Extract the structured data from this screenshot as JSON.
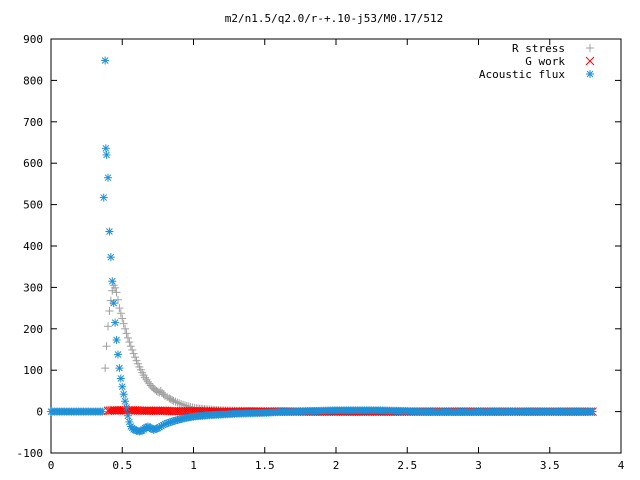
{
  "chart_data": {
    "type": "scatter",
    "title": "m2/n1.5/q2.0/r-+.10-j53/M0.17/512",
    "xlabel": "",
    "ylabel": "",
    "xlim": [
      0,
      4
    ],
    "ylim": [
      -100,
      900
    ],
    "x_ticks": [
      "0",
      "0.5",
      "1",
      "1.5",
      "2",
      "2.5",
      "3",
      "3.5",
      "4"
    ],
    "y_ticks": [
      "-100",
      "0",
      "100",
      "200",
      "300",
      "400",
      "500",
      "600",
      "700",
      "800",
      "900"
    ],
    "grid": false,
    "legend_position": "top-right",
    "series": [
      {
        "name": "R stress",
        "marker": "plus",
        "color": "#a0a0a0",
        "points": [
          [
            0.38,
            105
          ],
          [
            0.39,
            158
          ],
          [
            0.4,
            206
          ],
          [
            0.41,
            243
          ],
          [
            0.42,
            268
          ],
          [
            0.43,
            292
          ],
          [
            0.44,
            305
          ],
          [
            0.45,
            299
          ],
          [
            0.46,
            288
          ],
          [
            0.47,
            270
          ],
          [
            0.48,
            250
          ],
          [
            0.5,
            225
          ],
          [
            0.52,
            200
          ],
          [
            0.54,
            178
          ],
          [
            0.56,
            158
          ],
          [
            0.58,
            140
          ],
          [
            0.6,
            123
          ],
          [
            0.62,
            108
          ],
          [
            0.64,
            94
          ],
          [
            0.66,
            82
          ],
          [
            0.68,
            72
          ],
          [
            0.7,
            63
          ],
          [
            0.72,
            56
          ],
          [
            0.74,
            50
          ],
          [
            0.76,
            46
          ],
          [
            0.77,
            50
          ],
          [
            0.78,
            45
          ],
          [
            0.8,
            38
          ],
          [
            0.83,
            32
          ],
          [
            0.86,
            26
          ],
          [
            0.9,
            20
          ],
          [
            0.94,
            15
          ],
          [
            0.98,
            11
          ],
          [
            1.02,
            8
          ],
          [
            1.1,
            5
          ],
          [
            1.2,
            3
          ],
          [
            1.3,
            2
          ],
          [
            1.5,
            1
          ],
          [
            2.0,
            0
          ],
          [
            2.5,
            0
          ],
          [
            3.0,
            0
          ],
          [
            3.5,
            0
          ],
          [
            3.8,
            0
          ]
        ]
      },
      {
        "name": "G work",
        "marker": "cross",
        "color": "#ff0000",
        "points": [
          [
            0.4,
            2
          ],
          [
            0.44,
            3
          ],
          [
            0.5,
            3
          ],
          [
            0.55,
            3
          ],
          [
            0.6,
            3
          ],
          [
            0.65,
            2
          ],
          [
            0.7,
            2
          ],
          [
            0.75,
            2
          ],
          [
            0.8,
            2
          ],
          [
            0.85,
            1
          ],
          [
            0.9,
            1
          ],
          [
            0.95,
            1
          ],
          [
            1.0,
            1
          ],
          [
            1.1,
            1
          ],
          [
            1.2,
            0
          ],
          [
            1.3,
            0
          ],
          [
            1.4,
            0
          ],
          [
            1.5,
            0
          ],
          [
            1.6,
            0
          ],
          [
            1.7,
            0
          ],
          [
            1.8,
            0
          ],
          [
            1.9,
            0
          ],
          [
            2.0,
            0
          ],
          [
            2.1,
            0
          ],
          [
            2.2,
            0
          ],
          [
            2.3,
            0
          ],
          [
            2.4,
            0
          ],
          [
            2.5,
            0
          ],
          [
            2.6,
            0
          ],
          [
            2.7,
            0
          ],
          [
            2.8,
            0
          ],
          [
            2.9,
            0
          ],
          [
            3.0,
            0
          ],
          [
            3.1,
            0
          ],
          [
            3.2,
            0
          ],
          [
            3.3,
            0
          ],
          [
            3.4,
            0
          ],
          [
            3.5,
            0
          ],
          [
            3.6,
            0
          ],
          [
            3.7,
            0
          ],
          [
            3.8,
            0
          ]
        ]
      },
      {
        "name": "Acoustic flux",
        "marker": "star",
        "color": "#1e90d8",
        "points": [
          [
            0.37,
            517
          ],
          [
            0.38,
            848
          ],
          [
            0.385,
            636
          ],
          [
            0.39,
            620
          ],
          [
            0.4,
            565
          ],
          [
            0.41,
            435
          ],
          [
            0.42,
            373
          ],
          [
            0.43,
            315
          ],
          [
            0.44,
            262
          ],
          [
            0.45,
            215
          ],
          [
            0.46,
            173
          ],
          [
            0.47,
            138
          ],
          [
            0.48,
            105
          ],
          [
            0.49,
            80
          ],
          [
            0.5,
            60
          ],
          [
            0.51,
            42
          ],
          [
            0.52,
            25
          ],
          [
            0.53,
            10
          ],
          [
            0.54,
            -10
          ],
          [
            0.55,
            -25
          ],
          [
            0.56,
            -36
          ],
          [
            0.58,
            -43
          ],
          [
            0.6,
            -46
          ],
          [
            0.62,
            -48
          ],
          [
            0.64,
            -46
          ],
          [
            0.66,
            -40
          ],
          [
            0.68,
            -36
          ],
          [
            0.7,
            -40
          ],
          [
            0.72,
            -44
          ],
          [
            0.75,
            -40
          ],
          [
            0.8,
            -30
          ],
          [
            0.85,
            -24
          ],
          [
            0.9,
            -19
          ],
          [
            0.95,
            -15
          ],
          [
            1.0,
            -12
          ],
          [
            1.1,
            -9
          ],
          [
            1.2,
            -7
          ],
          [
            1.3,
            -5
          ],
          [
            1.4,
            -4
          ],
          [
            1.5,
            -3
          ],
          [
            1.6,
            -1
          ],
          [
            1.7,
            0
          ],
          [
            1.8,
            1
          ],
          [
            1.9,
            2
          ],
          [
            2.0,
            3
          ],
          [
            2.1,
            3
          ],
          [
            2.2,
            3
          ],
          [
            2.3,
            3
          ],
          [
            2.4,
            2
          ],
          [
            2.5,
            1
          ],
          [
            2.6,
            0
          ],
          [
            2.7,
            -1
          ],
          [
            2.8,
            -1
          ],
          [
            2.9,
            -1
          ],
          [
            3.0,
            -1
          ],
          [
            3.1,
            0
          ],
          [
            3.2,
            0
          ],
          [
            3.3,
            0
          ],
          [
            3.4,
            0
          ],
          [
            3.5,
            0
          ],
          [
            3.6,
            0
          ],
          [
            3.7,
            0
          ],
          [
            3.8,
            0
          ]
        ]
      }
    ],
    "baseline_band": {
      "series": "Acoustic flux",
      "x_range": [
        0,
        0.37
      ],
      "y": 0
    }
  }
}
